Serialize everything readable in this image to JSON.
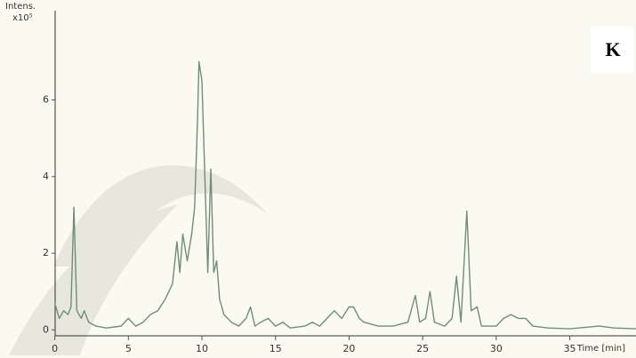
{
  "chart_data": {
    "type": "line",
    "panel_label": "K",
    "y_label": "Intens.",
    "y_unit": "x10⁵",
    "x_label": "Time [min]",
    "x": [
      0,
      0.3,
      0.6,
      0.9,
      1.1,
      1.3,
      1.5,
      1.8,
      2.0,
      2.3,
      2.8,
      3.5,
      4.5,
      5.0,
      5.5,
      6.0,
      6.5,
      7.0,
      7.5,
      8.0,
      8.3,
      8.5,
      8.7,
      9.0,
      9.3,
      9.5,
      9.7,
      9.8,
      10.0,
      10.2,
      10.4,
      10.6,
      10.8,
      11.0,
      11.2,
      11.5,
      12.0,
      12.5,
      13.0,
      13.3,
      13.6,
      14.0,
      14.5,
      15.0,
      15.5,
      16.0,
      17.0,
      17.5,
      18.0,
      18.5,
      19.0,
      19.5,
      20.0,
      20.3,
      20.7,
      21.0,
      22.0,
      23.0,
      24.0,
      24.5,
      24.8,
      25.2,
      25.5,
      25.8,
      26.5,
      27.0,
      27.3,
      27.6,
      28.0,
      28.3,
      28.7,
      29.0,
      30.0,
      30.5,
      31.0,
      31.5,
      32.0,
      32.5,
      33.5,
      35,
      37,
      38,
      39.5
    ],
    "series": [
      {
        "color": "#6f8f72",
        "values": [
          0.7,
          0.3,
          0.5,
          0.4,
          0.6,
          3.2,
          0.5,
          0.3,
          0.5,
          0.2,
          0.1,
          0.05,
          0.1,
          0.3,
          0.1,
          0.2,
          0.4,
          0.5,
          0.8,
          1.2,
          2.3,
          1.5,
          2.5,
          1.8,
          2.5,
          3.2,
          5.5,
          7.0,
          6.5,
          4.0,
          1.5,
          4.2,
          1.5,
          1.8,
          0.8,
          0.4,
          0.2,
          0.1,
          0.3,
          0.6,
          0.1,
          0.2,
          0.3,
          0.1,
          0.2,
          0.05,
          0.1,
          0.2,
          0.1,
          0.3,
          0.5,
          0.3,
          0.6,
          0.6,
          0.3,
          0.2,
          0.1,
          0.1,
          0.2,
          0.9,
          0.2,
          0.3,
          1.0,
          0.2,
          0.1,
          0.3,
          1.4,
          0.2,
          3.1,
          0.5,
          0.6,
          0.1,
          0.1,
          0.3,
          0.4,
          0.3,
          0.3,
          0.1,
          0.05,
          0.03,
          0.1,
          0.05,
          0.03
        ]
      }
    ],
    "xlim": [
      -0.4,
      39.5
    ],
    "ylim": [
      -0.2,
      8.26
    ],
    "xticks": [
      0,
      5,
      10,
      15,
      20,
      25,
      30,
      35
    ],
    "yticks": [
      0,
      2,
      4,
      6
    ]
  }
}
